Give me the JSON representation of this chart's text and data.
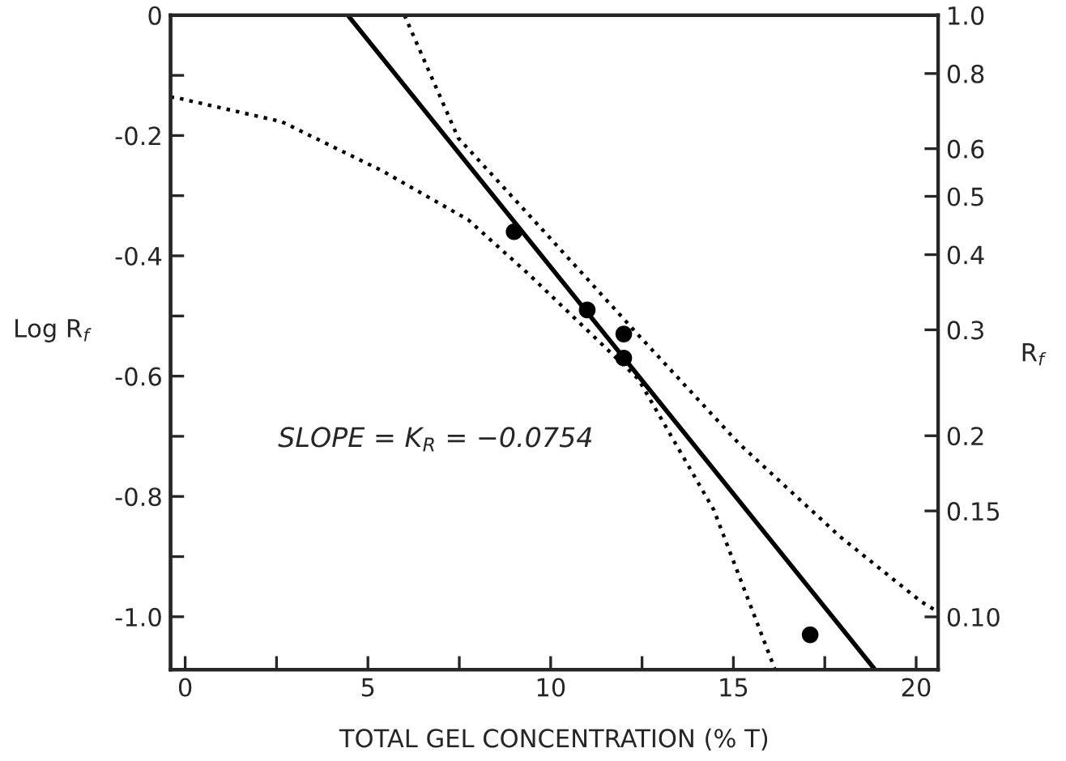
{
  "chart_data": {
    "type": "scatter",
    "xlabel": "TOTAL GEL CONCENTRATION (% T)",
    "ylabel": "Log R$_{f}$",
    "y2label": "R$_{f}$",
    "annotations": [
      "SLOPE = K$_{R}$ = −0.0754"
    ],
    "xlim": [
      -0.4,
      20.6
    ],
    "ylim": [
      -1.088,
      0
    ],
    "xticks": [
      0,
      {
        "value": 2.5,
        "label": null
      },
      5,
      {
        "value": 7.5,
        "label": null
      },
      10,
      {
        "value": 12.5,
        "label": null
      },
      15,
      {
        "value": 17.5,
        "label": null
      },
      20
    ],
    "yticks": [
      {
        "value": 0,
        "label": "0"
      },
      {
        "value": -0.1,
        "label": null
      },
      {
        "value": -0.2,
        "label": "-0.2"
      },
      {
        "value": -0.3,
        "label": null
      },
      {
        "value": -0.4,
        "label": "-0.4"
      },
      {
        "value": -0.5,
        "label": null
      },
      {
        "value": -0.6,
        "label": "-0.6"
      },
      {
        "value": -0.7,
        "label": null
      },
      {
        "value": -0.8,
        "label": "-0.8"
      },
      {
        "value": -0.9,
        "label": null
      },
      {
        "value": -1.0,
        "label": "-1.0"
      }
    ],
    "log": "y2",
    "y2lim": [
      0.0817,
      1.0
    ],
    "y2ticks": [
      {
        "value": 1.0,
        "label": "1.0"
      },
      0.8,
      0.6,
      0.5,
      0.4,
      0.3,
      0.2,
      0.15,
      {
        "value": 0.1,
        "label": "0.10"
      }
    ],
    "grid": false,
    "legend": false,
    "series": [
      {
        "color": "#000000",
        "marker": "circle",
        "x": [
          9,
          11,
          12,
          12,
          17.1
        ],
        "values": [
          -0.36,
          -0.49,
          -0.53,
          -0.57,
          -1.03
        ]
      },
      {
        "type": "line",
        "color": "#000000",
        "line_style": "solid",
        "marker": "none",
        "x": [
          4.45,
          18.85
        ],
        "values": [
          0.0,
          -1.086
        ]
      },
      {
        "type": "line",
        "color": "#000000",
        "line_style": "dotted",
        "marker": "none",
        "x": [
          6.0,
          7.47,
          9.39,
          12.39,
          15.15,
          17.9,
          20.14,
          20.55
        ],
        "values": [
          0.0,
          -0.204,
          -0.331,
          -0.531,
          -0.712,
          -0.866,
          -0.975,
          -0.99
        ]
      },
      {
        "type": "line",
        "color": "#000000",
        "line_style": "dotted",
        "marker": "none",
        "x": [
          -0.4,
          -0.25,
          2.64,
          5.4,
          7.74,
          9.39,
          12.4,
          14.46,
          16.14
        ],
        "values": [
          -0.136,
          -0.137,
          -0.177,
          -0.259,
          -0.34,
          -0.43,
          -0.605,
          -0.822,
          -1.088
        ]
      }
    ]
  }
}
